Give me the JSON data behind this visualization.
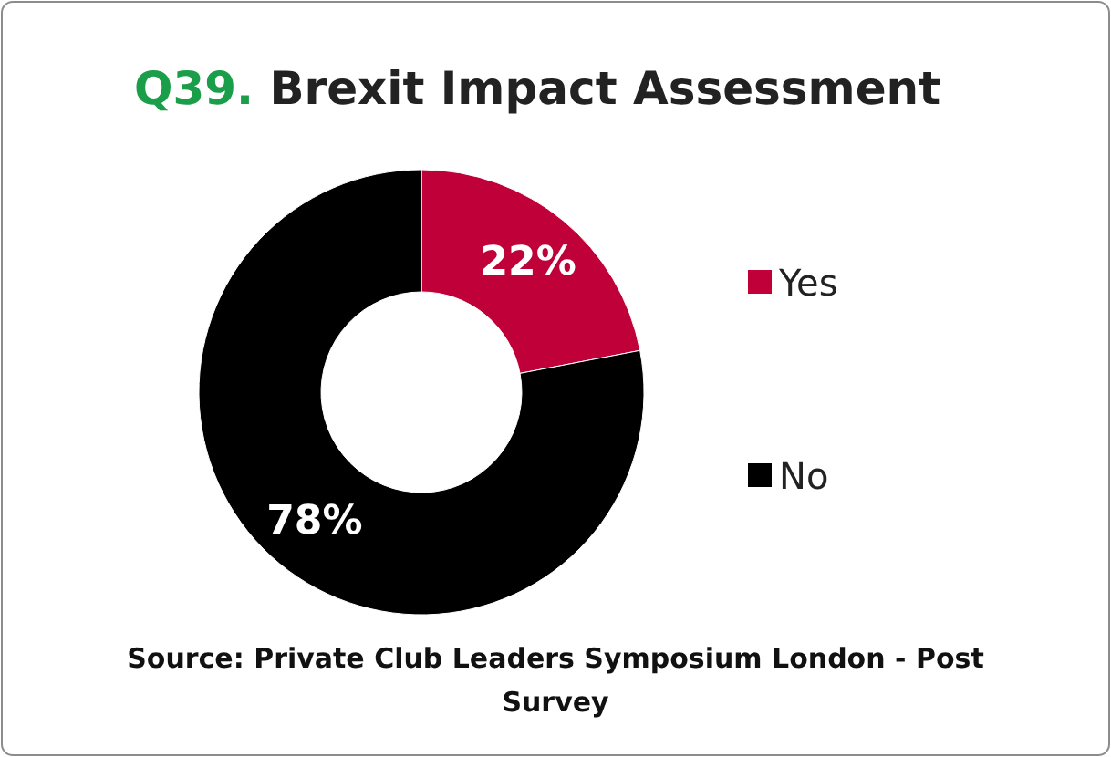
{
  "chart_data": {
    "type": "donut",
    "title": "Q39. Brexit Impact Assessment",
    "categories": [
      "Yes",
      "No"
    ],
    "values": [
      22,
      78
    ],
    "colors": [
      "#c00039",
      "#000000"
    ],
    "value_labels": [
      "22%",
      "78%"
    ],
    "legend": "right",
    "annotations": [
      "Source: Private Club Leaders Symposium London - Post Survey"
    ]
  }
}
